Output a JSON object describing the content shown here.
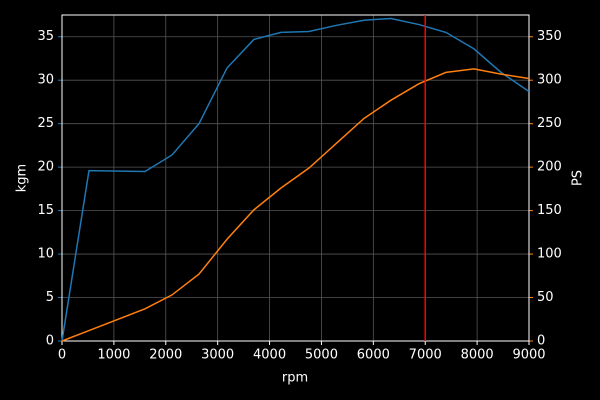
{
  "chart_data": {
    "type": "line",
    "x_label": "rpm",
    "y_label": "kgm",
    "y2_label": "PS",
    "x": [
      0,
      520,
      1600,
      2120,
      2640,
      3180,
      3700,
      4220,
      4760,
      5280,
      5820,
      6340,
      6880,
      7400,
      7940,
      8460,
      9000
    ],
    "series": [
      {
        "name": "kgm",
        "color": "#1f77b4",
        "axis": "y",
        "values": [
          0,
          19.6,
          19.5,
          21.4,
          25.0,
          31.4,
          34.7,
          35.5,
          35.6,
          36.3,
          36.9,
          37.1,
          36.4,
          35.5,
          33.6,
          30.9,
          28.7
        ]
      },
      {
        "name": "PS",
        "color": "#ff7f0e",
        "axis": "y2",
        "values": [
          0,
          12,
          37,
          53,
          77,
          117,
          151,
          176,
          199,
          227,
          256,
          277,
          296,
          309,
          313,
          307,
          302
        ]
      }
    ],
    "xlim": [
      0,
      9000
    ],
    "xticks": [
      0,
      1000,
      2000,
      3000,
      4000,
      5000,
      6000,
      7000,
      8000,
      9000
    ],
    "ylim": [
      0,
      37.5
    ],
    "yticks": [
      0,
      5,
      10,
      15,
      20,
      25,
      30,
      35
    ],
    "y2lim": [
      0,
      375
    ],
    "y2ticks": [
      0,
      50,
      100,
      150,
      200,
      250,
      300,
      350
    ],
    "vline": {
      "x": 7000,
      "color": "#ff0000"
    },
    "grid": true
  }
}
